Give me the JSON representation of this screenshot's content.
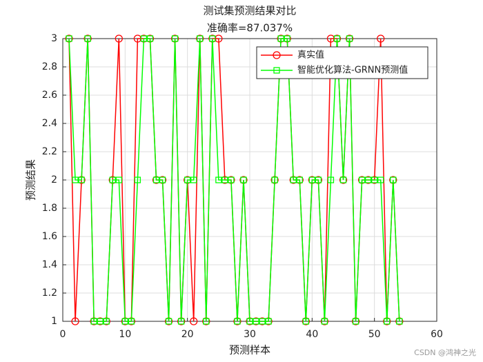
{
  "chart_data": {
    "type": "line",
    "title": "测试集预测结果对比",
    "subtitle": "准确率=87.037%",
    "x_label": "预测样本",
    "y_label": "预测结果",
    "watermark": "CSDN @鸿神之光",
    "x": [
      1,
      2,
      3,
      4,
      5,
      6,
      7,
      8,
      9,
      10,
      11,
      12,
      13,
      14,
      15,
      16,
      17,
      18,
      19,
      20,
      21,
      22,
      23,
      24,
      25,
      26,
      27,
      28,
      29,
      30,
      31,
      32,
      33,
      34,
      35,
      36,
      37,
      38,
      39,
      40,
      41,
      42,
      43,
      44,
      45,
      46,
      47,
      48,
      49,
      50,
      51,
      52,
      53,
      54
    ],
    "series": [
      {
        "name": "真实值",
        "color": "#ff0000",
        "marker": "circle",
        "values": [
          3,
          1,
          2,
          3,
          1,
          1,
          1,
          2,
          3,
          1,
          1,
          3,
          3,
          3,
          2,
          2,
          1,
          3,
          1,
          2,
          1,
          3,
          1,
          3,
          3,
          2,
          2,
          1,
          2,
          1,
          1,
          1,
          1,
          2,
          3,
          3,
          2,
          2,
          1,
          2,
          2,
          1,
          3,
          3,
          2,
          3,
          1,
          2,
          2,
          2,
          3,
          1,
          2,
          1
        ]
      },
      {
        "name": "智能优化算法-GRNN预测值",
        "color": "#00ff00",
        "marker": "square",
        "values": [
          3,
          2,
          2,
          3,
          1,
          1,
          1,
          2,
          2,
          1,
          1,
          2,
          3,
          3,
          2,
          2,
          1,
          3,
          1,
          2,
          2,
          3,
          1,
          3,
          2,
          2,
          2,
          1,
          2,
          1,
          1,
          1,
          1,
          2,
          3,
          3,
          2,
          2,
          1,
          2,
          2,
          1,
          2,
          3,
          2,
          3,
          1,
          2,
          2,
          2,
          2,
          1,
          2,
          1
        ]
      }
    ],
    "xlim": [
      0,
      60
    ],
    "xticks": [
      0,
      10,
      20,
      30,
      40,
      50,
      60
    ],
    "ylim": [
      1,
      3
    ],
    "yticks": [
      1,
      1.2,
      1.4,
      1.6,
      1.8,
      2,
      2.2,
      2.4,
      2.6,
      2.8,
      3
    ],
    "grid": true,
    "legend": "northeast"
  }
}
